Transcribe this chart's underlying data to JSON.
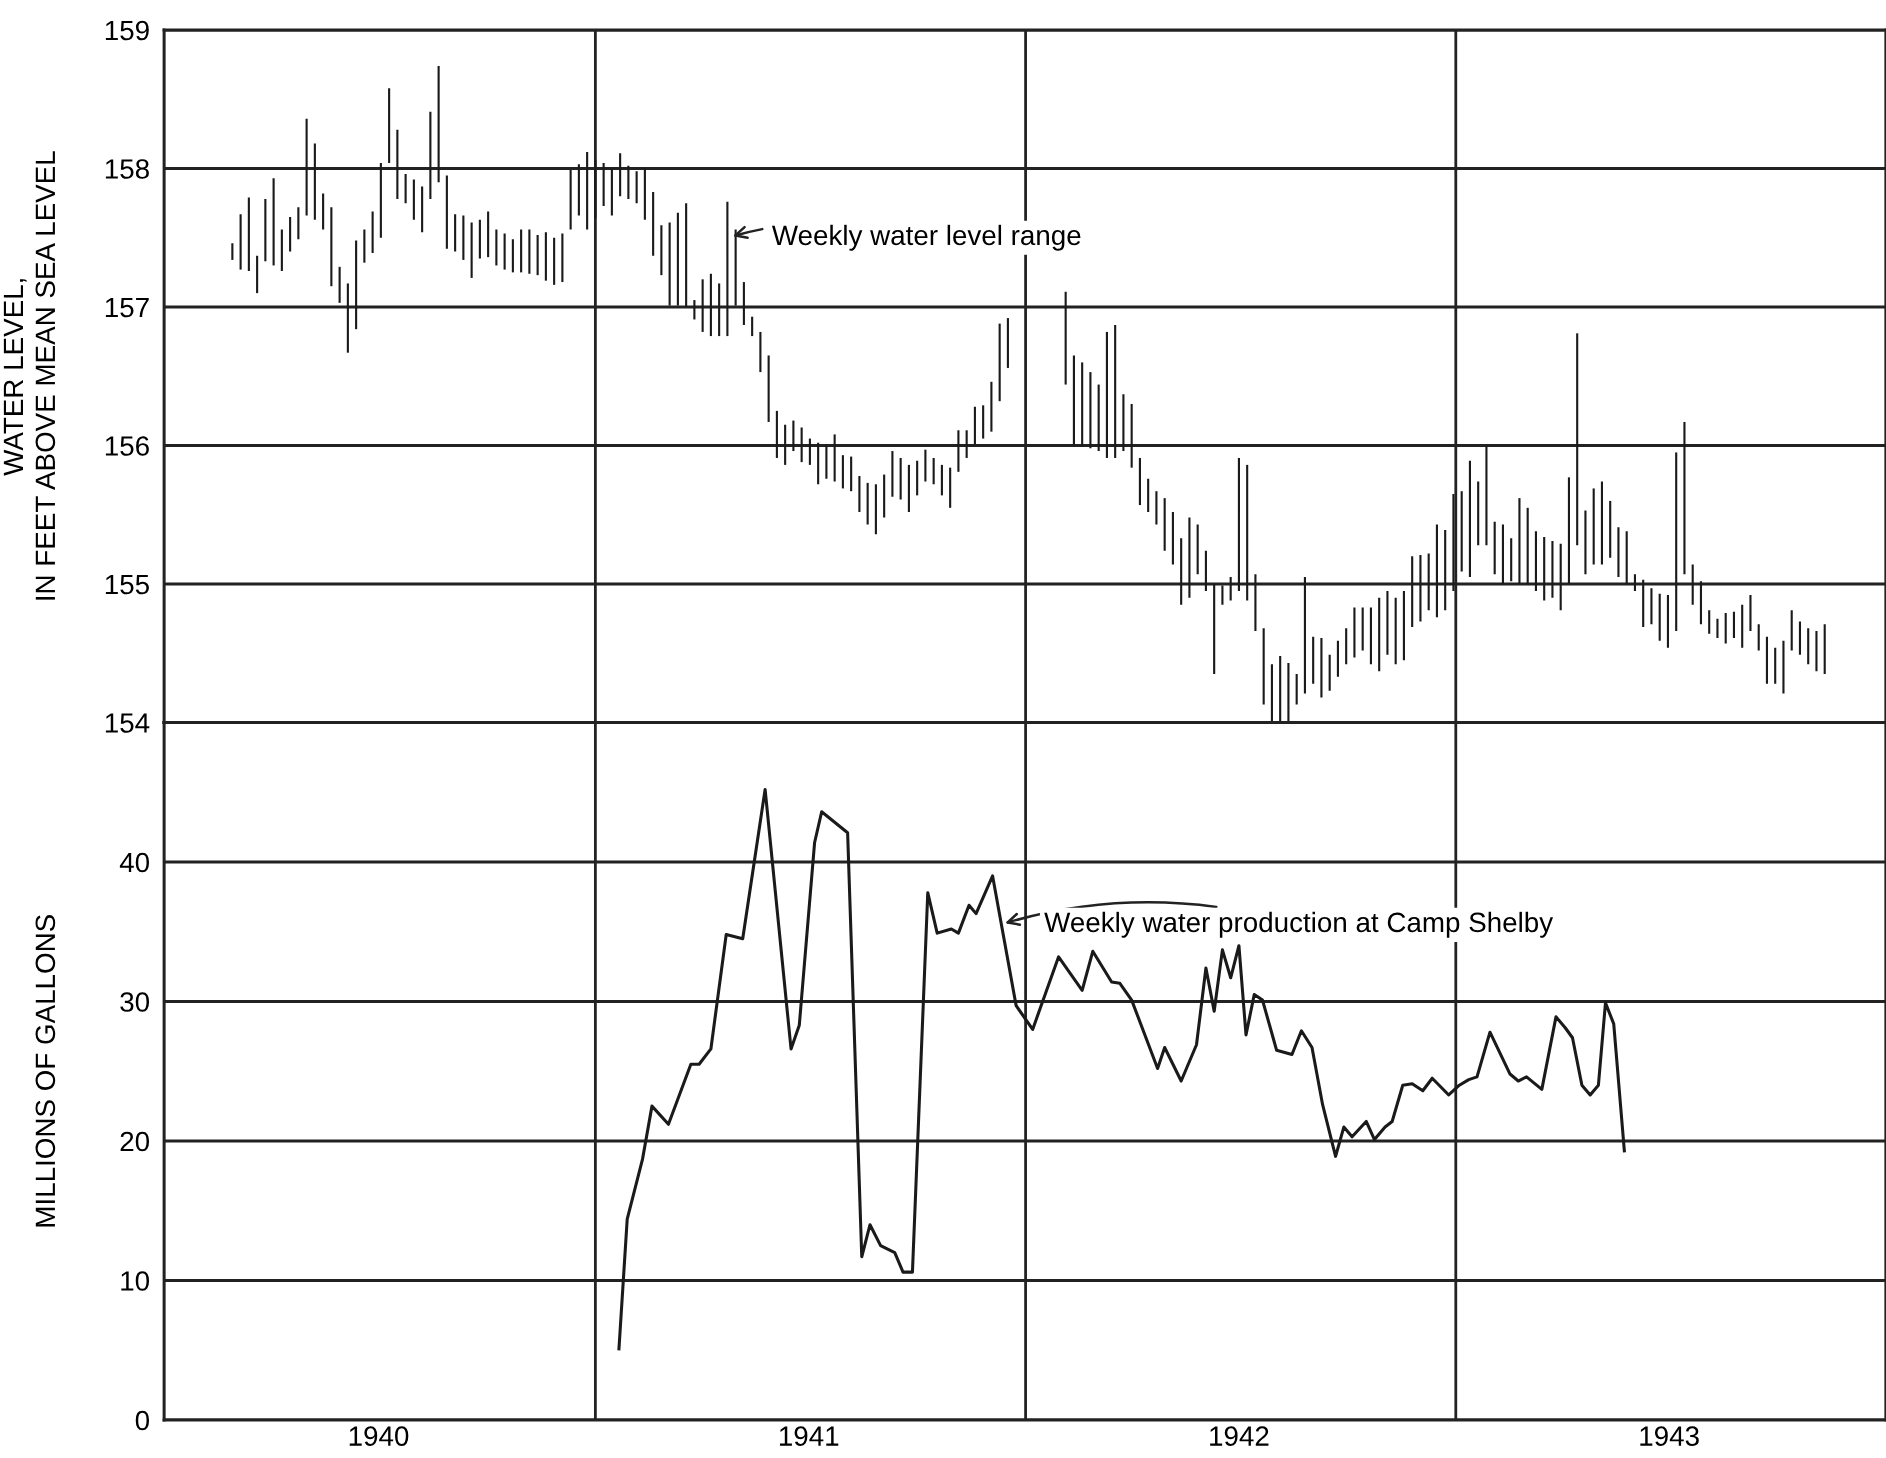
{
  "chart_data": [
    {
      "type": "bar",
      "ylabel": "WATER LEVEL,\nIN FEET ABOVE MEAN SEA LEVEL",
      "x": [
        "1940-02-28",
        "1940-03-06",
        "1940-03-13",
        "1940-03-20",
        "1940-03-27",
        "1940-04-03",
        "1940-04-10",
        "1940-04-17",
        "1940-04-24",
        "1940-05-01",
        "1940-05-08",
        "1940-05-15",
        "1940-05-22",
        "1940-05-29",
        "1940-06-05",
        "1940-06-12",
        "1940-06-19",
        "1940-06-26",
        "1940-07-03",
        "1940-07-10",
        "1940-07-17",
        "1940-07-24",
        "1940-07-31",
        "1940-08-07",
        "1940-08-14",
        "1940-08-21",
        "1940-08-28",
        "1940-09-04",
        "1940-09-11",
        "1940-09-18",
        "1940-09-25",
        "1940-10-02",
        "1940-10-09",
        "1940-10-16",
        "1940-10-23",
        "1940-10-30",
        "1940-11-06",
        "1940-11-13",
        "1940-11-20",
        "1940-11-27",
        "1940-12-04",
        "1940-12-11",
        "1940-12-18",
        "1940-12-25",
        "1941-01-01",
        "1941-01-08",
        "1941-01-15",
        "1941-01-22",
        "1941-01-29",
        "1941-02-05",
        "1941-02-12",
        "1941-02-19",
        "1941-02-26",
        "1941-03-05",
        "1941-03-12",
        "1941-03-19",
        "1941-03-26",
        "1941-04-02",
        "1941-04-09",
        "1941-04-16",
        "1941-04-23",
        "1941-04-30",
        "1941-05-07",
        "1941-05-14",
        "1941-05-21",
        "1941-05-28",
        "1941-06-04",
        "1941-06-11",
        "1941-06-18",
        "1941-06-25",
        "1941-07-02",
        "1941-07-09",
        "1941-07-16",
        "1941-07-23",
        "1941-07-30",
        "1941-08-06",
        "1941-08-13",
        "1941-08-20",
        "1941-08-27",
        "1941-09-03",
        "1941-09-10",
        "1941-09-17",
        "1941-09-24",
        "1941-10-01",
        "1941-10-08",
        "1941-10-15",
        "1941-10-22",
        "1941-10-29",
        "1941-11-05",
        "1941-11-12",
        "1941-11-19",
        "1941-11-26",
        "1941-12-03",
        "1941-12-10",
        "1941-12-17",
        "1942-02-04",
        "1942-02-11",
        "1942-02-18",
        "1942-02-25",
        "1942-03-04",
        "1942-03-11",
        "1942-03-18",
        "1942-03-25",
        "1942-04-01",
        "1942-04-08",
        "1942-04-15",
        "1942-04-22",
        "1942-04-29",
        "1942-05-06",
        "1942-05-13",
        "1942-05-20",
        "1942-05-27",
        "1942-06-03",
        "1942-06-10",
        "1942-06-17",
        "1942-06-24",
        "1942-07-01",
        "1942-07-08",
        "1942-07-15",
        "1942-07-22",
        "1942-07-29",
        "1942-08-05",
        "1942-08-12",
        "1942-08-19",
        "1942-08-26",
        "1942-09-02",
        "1942-09-09",
        "1942-09-16",
        "1942-09-23",
        "1942-09-30",
        "1942-10-07",
        "1942-10-14",
        "1942-10-21",
        "1942-10-28",
        "1942-11-04",
        "1942-11-11",
        "1942-11-18",
        "1942-11-25",
        "1942-12-02",
        "1942-12-09",
        "1942-12-16",
        "1942-12-23",
        "1942-12-30",
        "1943-01-06",
        "1943-01-13",
        "1943-01-20",
        "1943-01-27",
        "1943-02-03",
        "1943-02-10",
        "1943-02-17",
        "1943-02-24",
        "1943-03-03",
        "1943-03-10",
        "1943-03-17",
        "1943-03-24",
        "1943-03-31",
        "1943-04-07",
        "1943-04-14",
        "1943-04-21",
        "1943-04-28",
        "1943-05-05",
        "1943-05-12",
        "1943-05-19",
        "1943-05-26",
        "1943-06-02",
        "1943-06-09",
        "1943-06-16",
        "1943-06-23",
        "1943-06-30",
        "1943-07-07",
        "1943-07-14",
        "1943-07-21",
        "1943-07-28",
        "1943-08-04",
        "1943-08-11",
        "1943-08-18",
        "1943-08-25",
        "1943-09-01",
        "1943-09-08",
        "1943-09-15",
        "1943-09-22",
        "1943-09-29",
        "1943-10-06",
        "1943-10-13",
        "1943-10-20",
        "1943-10-27",
        "1943-11-03",
        "1943-11-10"
      ],
      "base": [
        157.34,
        157.27,
        157.26,
        157.1,
        157.33,
        157.3,
        157.26,
        157.4,
        157.49,
        157.66,
        157.63,
        157.56,
        157.15,
        157.03,
        156.67,
        156.84,
        157.32,
        157.39,
        157.5,
        158.04,
        157.78,
        157.75,
        157.63,
        157.54,
        157.78,
        157.9,
        157.42,
        157.4,
        157.34,
        157.21,
        157.35,
        157.36,
        157.3,
        157.27,
        157.25,
        157.25,
        157.24,
        157.23,
        157.19,
        157.16,
        157.18,
        157.56,
        157.66,
        157.56,
        157.64,
        157.73,
        157.66,
        157.8,
        157.78,
        157.75,
        157.63,
        157.37,
        157.23,
        157.01,
        157.01,
        157.0,
        156.91,
        156.82,
        156.79,
        156.79,
        156.79,
        157.01,
        156.87,
        156.79,
        156.53,
        156.17,
        155.91,
        155.86,
        155.96,
        155.88,
        155.86,
        155.72,
        155.76,
        155.74,
        155.69,
        155.67,
        155.52,
        155.43,
        155.36,
        155.48,
        155.63,
        155.61,
        155.52,
        155.64,
        155.74,
        155.72,
        155.64,
        155.55,
        155.81,
        155.91,
        156.01,
        156.05,
        156.1,
        156.32,
        156.56,
        156.44,
        156.0,
        155.99,
        155.98,
        155.96,
        155.91,
        155.91,
        155.96,
        155.84,
        155.57,
        155.52,
        155.43,
        155.24,
        155.14,
        154.85,
        154.9,
        155.07,
        154.95,
        154.35,
        154.85,
        154.88,
        154.95,
        154.88,
        154.66,
        154.13,
        154.01,
        154.0,
        154.0,
        154.13,
        154.21,
        154.28,
        154.18,
        154.23,
        154.33,
        154.42,
        154.47,
        154.52,
        154.42,
        154.37,
        154.49,
        154.42,
        154.45,
        154.69,
        154.73,
        154.81,
        154.76,
        154.81,
        154.95,
        155.09,
        155.05,
        155.28,
        155.28,
        155.07,
        155.0,
        155.02,
        155.0,
        155.0,
        154.95,
        154.88,
        154.9,
        154.81,
        155.0,
        155.28,
        155.07,
        155.14,
        155.14,
        155.19,
        155.05,
        155.0,
        154.95,
        154.69,
        154.71,
        154.59,
        154.54,
        154.66,
        155.07,
        154.85,
        154.71,
        154.64,
        154.61,
        154.57,
        154.61,
        154.54,
        154.66,
        154.52,
        154.28,
        154.28,
        154.21,
        154.52,
        154.49,
        154.42,
        154.37,
        154.35
      ],
      "values": [
        0.12,
        0.4,
        0.53,
        0.27,
        0.45,
        0.63,
        0.3,
        0.25,
        0.23,
        0.7,
        0.55,
        0.26,
        0.57,
        0.26,
        0.5,
        0.64,
        0.24,
        0.3,
        0.54,
        0.54,
        0.5,
        0.21,
        0.29,
        0.33,
        0.63,
        0.84,
        0.53,
        0.27,
        0.32,
        0.4,
        0.28,
        0.33,
        0.26,
        0.26,
        0.24,
        0.31,
        0.32,
        0.29,
        0.35,
        0.34,
        0.35,
        0.43,
        0.37,
        0.56,
        0.42,
        0.31,
        0.34,
        0.31,
        0.24,
        0.23,
        0.37,
        0.46,
        0.36,
        0.6,
        0.67,
        0.75,
        0.14,
        0.38,
        0.45,
        0.38,
        0.97,
        0.55,
        0.31,
        0.14,
        0.29,
        0.48,
        0.34,
        0.29,
        0.22,
        0.25,
        0.19,
        0.3,
        0.24,
        0.34,
        0.24,
        0.25,
        0.26,
        0.3,
        0.36,
        0.31,
        0.33,
        0.3,
        0.34,
        0.25,
        0.23,
        0.19,
        0.22,
        0.29,
        0.3,
        0.2,
        0.27,
        0.24,
        0.36,
        0.56,
        0.36,
        0.67,
        0.65,
        0.61,
        0.55,
        0.48,
        0.91,
        0.96,
        0.41,
        0.46,
        0.34,
        0.24,
        0.24,
        0.38,
        0.38,
        0.48,
        0.58,
        0.36,
        0.29,
        0.65,
        0.14,
        0.17,
        0.96,
        0.98,
        0.41,
        0.55,
        0.41,
        0.48,
        0.43,
        0.22,
        0.84,
        0.34,
        0.43,
        0.26,
        0.26,
        0.26,
        0.36,
        0.31,
        0.41,
        0.53,
        0.46,
        0.48,
        0.5,
        0.51,
        0.48,
        0.41,
        0.67,
        0.58,
        0.7,
        0.58,
        0.84,
        0.46,
        0.72,
        0.38,
        0.43,
        0.31,
        0.62,
        0.55,
        0.43,
        0.46,
        0.41,
        0.48,
        0.77,
        1.53,
        0.46,
        0.55,
        0.6,
        0.41,
        0.36,
        0.38,
        0.12,
        0.34,
        0.26,
        0.34,
        0.38,
        1.29,
        1.1,
        0.29,
        0.31,
        0.17,
        0.14,
        0.22,
        0.19,
        0.31,
        0.26,
        0.19,
        0.34,
        0.26,
        0.38,
        0.29,
        0.24,
        0.26,
        0.29,
        0.36
      ],
      "color": "#1a1a1a",
      "xlim": [
        "1940-01-01",
        "1944-01-01"
      ],
      "xticks": [
        {
          "value": "1940-01-01",
          "label": null
        },
        {
          "value": "1941-01-01",
          "label": null
        },
        {
          "value": "1942-01-01",
          "label": null
        },
        {
          "value": "1943-01-01",
          "label": null
        },
        {
          "value": "1944-01-01",
          "label": null
        }
      ],
      "ylim": [
        154,
        159
      ],
      "yticks": [
        154,
        155,
        156,
        157,
        158,
        159
      ],
      "grid": true,
      "tick_labels": "y",
      "annotations": [
        {
          "text": "Weekly water level range",
          "x": "1941-04-23",
          "y": 157.5
        }
      ]
    },
    {
      "type": "line",
      "ylabel": "MILLIONS OF GALLONS",
      "x": [
        "1941-01-21",
        "1941-01-28",
        "1941-02-10",
        "1941-02-18",
        "1941-03-04",
        "1941-03-23",
        "1941-03-30",
        "1941-04-09",
        "1941-04-22",
        "1941-05-06",
        "1941-05-25",
        "1941-06-16",
        "1941-06-23",
        "1941-07-06",
        "1941-07-12",
        "1941-08-03",
        "1941-08-15",
        "1941-08-22",
        "1941-08-31",
        "1941-09-12",
        "1941-09-19",
        "1941-09-27",
        "1941-10-10",
        "1941-10-18",
        "1941-10-30",
        "1941-11-05",
        "1941-11-14",
        "1941-11-20",
        "1941-12-04",
        "1941-12-24",
        "1942-01-07",
        "1942-01-29",
        "1942-02-18",
        "1942-02-27",
        "1942-03-15",
        "1942-03-22",
        "1942-04-01",
        "1942-04-23",
        "1942-04-29",
        "1942-05-13",
        "1942-05-26",
        "1942-06-03",
        "1942-06-10",
        "1942-06-17",
        "1942-06-24",
        "1942-07-01",
        "1942-07-07",
        "1942-07-14",
        "1942-07-21",
        "1942-08-02",
        "1942-08-15",
        "1942-08-23",
        "1942-09-01",
        "1942-09-10",
        "1942-09-21",
        "1942-09-28",
        "1942-10-05",
        "1942-10-17",
        "1942-10-24",
        "1942-11-02",
        "1942-11-08",
        "1942-11-17",
        "1942-11-25",
        "1942-12-04",
        "1942-12-12",
        "1942-12-26",
        "1943-01-04",
        "1943-01-12",
        "1943-01-19",
        "1943-01-30",
        "1943-02-16",
        "1943-02-23",
        "1943-03-02",
        "1943-03-15",
        "1943-03-27",
        "1943-04-04",
        "1943-04-10",
        "1943-04-18",
        "1943-04-25",
        "1943-05-02",
        "1943-05-08",
        "1943-05-15",
        "1943-05-24"
      ],
      "values": [
        5.1,
        14.4,
        18.7,
        22.5,
        21.2,
        25.5,
        25.5,
        26.6,
        34.8,
        34.5,
        45.2,
        26.6,
        28.3,
        41.4,
        43.6,
        42.1,
        11.7,
        14.0,
        12.5,
        12.0,
        10.6,
        10.6,
        37.8,
        34.9,
        35.2,
        34.9,
        36.9,
        36.3,
        39.0,
        29.7,
        28.0,
        33.2,
        30.8,
        33.6,
        31.4,
        31.3,
        30.1,
        25.2,
        26.7,
        24.3,
        26.9,
        32.4,
        29.3,
        33.7,
        31.7,
        34.0,
        27.6,
        30.5,
        30.1,
        26.5,
        26.2,
        27.9,
        26.7,
        22.6,
        18.9,
        21.0,
        20.3,
        21.4,
        20.1,
        21.0,
        21.4,
        24.0,
        24.1,
        23.6,
        24.5,
        23.3,
        24.0,
        24.4,
        24.6,
        27.8,
        24.8,
        24.3,
        24.6,
        23.7,
        28.9,
        28.1,
        27.4,
        24.0,
        23.3,
        24.0,
        29.9,
        28.4,
        19.3
      ],
      "color": "#1a1a1a",
      "marker": "none",
      "line_style": "solid",
      "xlim": [
        "1940-01-01",
        "1944-01-01"
      ],
      "xticks": [
        {
          "value": "1940-01-01",
          "label": null
        },
        {
          "value": "1941-01-01",
          "label": null
        },
        {
          "value": "1942-01-01",
          "label": null
        },
        {
          "value": "1943-01-01",
          "label": null
        },
        {
          "value": "1944-01-01",
          "label": null
        },
        {
          "value": "1940-07-01",
          "label": "1940"
        },
        {
          "value": "1941-07-01",
          "label": "1941"
        },
        {
          "value": "1942-07-01",
          "label": "1942"
        },
        {
          "value": "1943-07-01",
          "label": "1943"
        }
      ],
      "ylim": [
        0,
        50
      ],
      "yticks": [
        0,
        10,
        20,
        30,
        40
      ],
      "grid": true,
      "annotations": [
        {
          "text": "Weekly water production at Camp Shelby",
          "x": "1941-12-10",
          "y": 35.5
        }
      ]
    }
  ]
}
